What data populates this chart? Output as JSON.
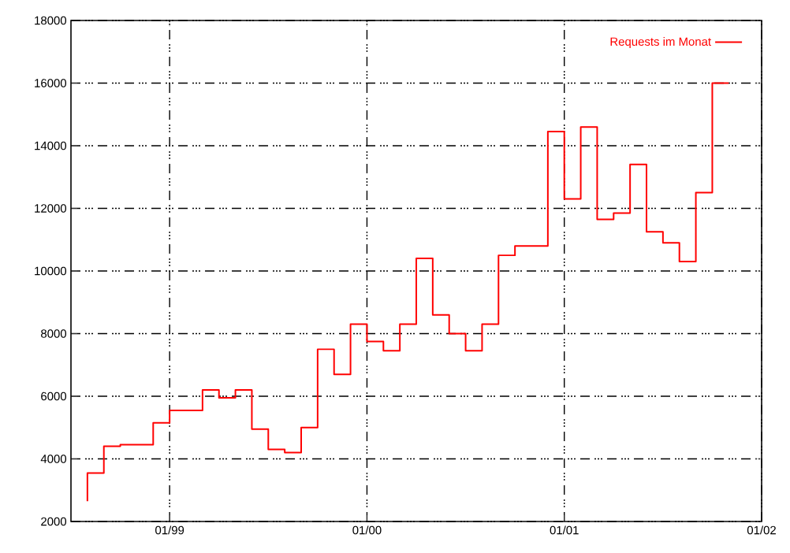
{
  "chart_data": {
    "type": "step",
    "x": [
      "1998-08",
      "1998-09",
      "1998-10",
      "1998-11",
      "1998-12",
      "1999-01",
      "1999-02",
      "1999-03",
      "1999-04",
      "1999-05",
      "1999-06",
      "1999-07",
      "1999-08",
      "1999-09",
      "1999-10",
      "1999-11",
      "1999-12",
      "2000-01",
      "2000-02",
      "2000-03",
      "2000-04",
      "2000-05",
      "2000-06",
      "2000-07",
      "2000-08",
      "2000-09",
      "2000-10",
      "2000-11",
      "2000-12",
      "2001-01",
      "2001-02",
      "2001-03",
      "2001-04",
      "2001-05",
      "2001-06",
      "2001-07",
      "2001-08",
      "2001-09",
      "2001-10",
      "2001-11"
    ],
    "series": [
      {
        "name": "Requests im Monat",
        "color": "#ff0000",
        "values": [
          2650,
          3550,
          4400,
          4450,
          4450,
          5150,
          5550,
          5550,
          6200,
          5950,
          6200,
          4950,
          4300,
          4200,
          5000,
          7500,
          6700,
          8300,
          7750,
          7450,
          8300,
          10400,
          8600,
          8000,
          7450,
          8300,
          10500,
          10800,
          10800,
          14450,
          12300,
          14600,
          11650,
          11850,
          13400,
          11250,
          10900,
          10300,
          12500,
          16000
        ]
      }
    ],
    "xlim": [
      "1998-07",
      "2002-01"
    ],
    "xticks": [
      {
        "value": "1999-01",
        "label": "01/99"
      },
      {
        "value": "2000-01",
        "label": "01/00"
      },
      {
        "value": "2001-01",
        "label": "01/01"
      },
      {
        "value": "2002-01",
        "label": "01/02"
      }
    ],
    "ylim": [
      2000,
      18000
    ],
    "yticks": [
      2000,
      4000,
      6000,
      8000,
      10000,
      12000,
      14000,
      16000,
      18000
    ],
    "grid": true,
    "legend": "top right"
  }
}
